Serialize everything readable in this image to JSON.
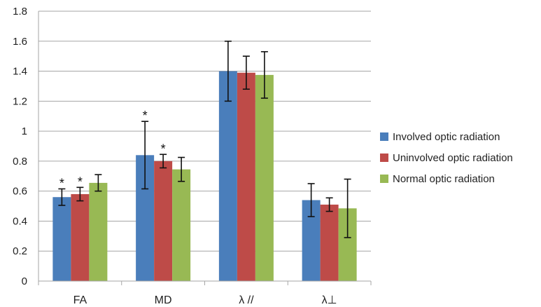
{
  "chart_data": {
    "type": "bar",
    "categories": [
      "FA",
      "MD",
      "λ //",
      "λ⊥"
    ],
    "series": [
      {
        "name": "Involved optic radiation",
        "color": "#4a7ebb",
        "values": [
          0.56,
          0.84,
          1.4,
          0.54
        ],
        "errors": [
          0.055,
          0.225,
          0.2,
          0.11
        ],
        "significant": [
          true,
          true,
          false,
          false
        ]
      },
      {
        "name": "Uninvolved optic radiation",
        "color": "#be4b48",
        "values": [
          0.58,
          0.8,
          1.39,
          0.51
        ],
        "errors": [
          0.045,
          0.045,
          0.11,
          0.045
        ],
        "significant": [
          true,
          true,
          false,
          false
        ]
      },
      {
        "name": "Normal optic radiation",
        "color": "#98b954",
        "values": [
          0.655,
          0.745,
          1.375,
          0.485
        ],
        "errors": [
          0.055,
          0.08,
          0.155,
          0.195
        ],
        "significant": [
          false,
          false,
          false,
          false
        ]
      }
    ],
    "significance_marker": "*",
    "ylim": [
      0,
      1.8
    ],
    "yticks": [
      "0",
      "0.2",
      "0.4",
      "0.6",
      "0.8",
      "1",
      "1.2",
      "1.4",
      "1.6",
      "1.8"
    ],
    "title": "",
    "xlabel": "",
    "ylabel": "",
    "grid": "horizontal",
    "legend_position": "right"
  }
}
